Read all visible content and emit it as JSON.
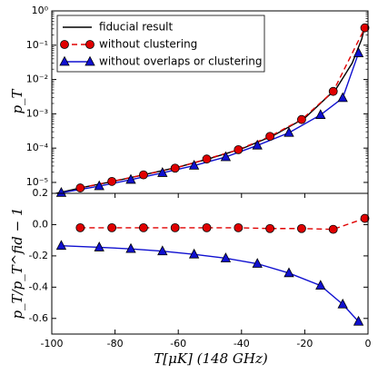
{
  "chart_data": [
    {
      "type": "line",
      "ylabel": "p_T",
      "log_y": true,
      "xlim": [
        -100,
        0
      ],
      "ylim": [
        4.8e-06,
        1
      ],
      "yticks": [
        {
          "value": 1e-05,
          "label": "10⁻⁵"
        },
        {
          "value": 0.0001,
          "label": "10⁻⁴"
        },
        {
          "value": 0.001,
          "label": "10⁻³"
        },
        {
          "value": 0.01,
          "label": "10⁻²"
        },
        {
          "value": 0.1,
          "label": "10⁻¹"
        },
        {
          "value": 1,
          "label": "10⁰"
        }
      ],
      "legend": "upper left",
      "series": [
        {
          "name": "fiducial result",
          "color": "#000000",
          "style": "solid",
          "marker": "none",
          "x": [
            -100,
            -90,
            -80,
            -70,
            -60,
            -50,
            -40,
            -30,
            -20,
            -10,
            -5,
            -2,
            -1
          ],
          "values": [
            4.5e-06,
            7.2e-06,
            1.1e-05,
            1.75e-05,
            2.8e-05,
            5e-05,
            9.5e-05,
            0.00023,
            0.00075,
            0.0055,
            0.03,
            0.15,
            0.35
          ]
        },
        {
          "name": "without clustering",
          "color": "#e00000",
          "style": "dashed",
          "marker": "circle",
          "x": [
            -91,
            -81,
            -71,
            -61,
            -51,
            -41,
            -31,
            -21,
            -11,
            -1
          ],
          "values": [
            6.9e-06,
            1.07e-05,
            1.66e-05,
            2.6e-05,
            4.8e-05,
            9e-05,
            0.00022,
            0.00068,
            0.0045,
            0.32
          ]
        },
        {
          "name": "without overlaps or clustering",
          "color": "#1010d0",
          "style": "solid",
          "marker": "triangle",
          "x": [
            -97,
            -85,
            -75,
            -65,
            -55,
            -45,
            -35,
            -25,
            -15,
            -8,
            -3
          ],
          "values": [
            5e-06,
            7.8e-06,
            1.2e-05,
            1.9e-05,
            3.1e-05,
            5.5e-05,
            0.00012,
            0.00028,
            0.00093,
            0.0029,
            0.059
          ]
        }
      ]
    },
    {
      "type": "line",
      "ylabel": "p_T/p_T^fid − 1",
      "xlabel": "T[μK] (148 GHz)",
      "xlim": [
        -100,
        0
      ],
      "ylim": [
        -0.7,
        0.2
      ],
      "xticks": [
        -100,
        -80,
        -60,
        -40,
        -20,
        0
      ],
      "yticks": [
        -0.6,
        -0.4,
        -0.2,
        {
          "value": 0,
          "label": "0.0"
        },
        0.2
      ],
      "series": [
        {
          "color": "#e00000",
          "style": "dashed",
          "marker": "circle",
          "x": [
            -91,
            -81,
            -71,
            -61,
            -51,
            -41,
            -31,
            -21,
            -11,
            -1
          ],
          "values": [
            -0.02,
            -0.02,
            -0.02,
            -0.02,
            -0.02,
            -0.02,
            -0.025,
            -0.025,
            -0.03,
            0.04
          ]
        },
        {
          "color": "#1010d0",
          "style": "solid",
          "marker": "triangle",
          "x": [
            -97,
            -85,
            -75,
            -65,
            -55,
            -45,
            -35,
            -25,
            -15,
            -8,
            -3
          ],
          "values": [
            -0.135,
            -0.145,
            -0.155,
            -0.17,
            -0.19,
            -0.215,
            -0.25,
            -0.31,
            -0.39,
            -0.51,
            -0.62
          ]
        }
      ]
    }
  ]
}
